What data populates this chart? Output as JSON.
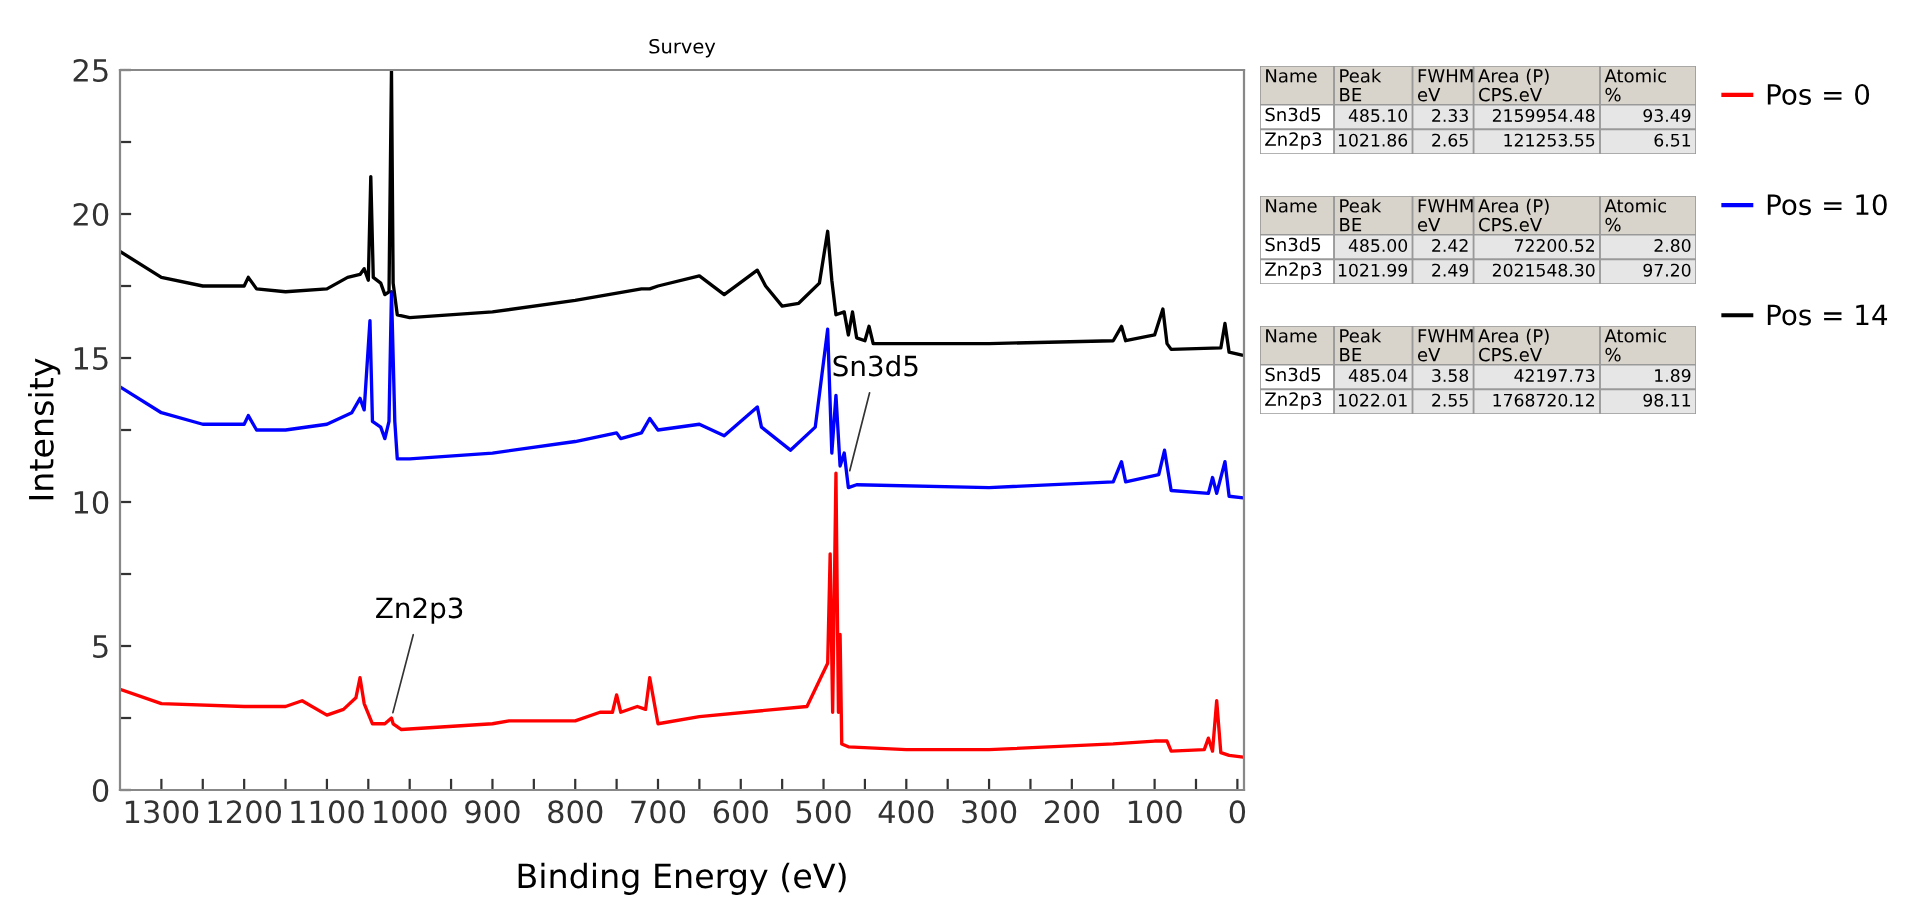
{
  "chart_data": [
    {
      "type": "line",
      "title": "Survey",
      "xlabel": "Binding Energy (eV)",
      "ylabel": "Intensity",
      "xlim": [
        1350,
        -8
      ],
      "ylim": [
        0,
        25
      ],
      "xticks": [
        1300,
        {
          "value": 1250,
          "label": null
        },
        1200,
        {
          "value": 1150,
          "label": null
        },
        1100,
        {
          "value": 1050,
          "label": null
        },
        1000,
        {
          "value": 950,
          "label": null
        },
        900,
        {
          "value": 850,
          "label": null
        },
        800,
        {
          "value": 750,
          "label": null
        },
        700,
        {
          "value": 650,
          "label": null
        },
        600,
        {
          "value": 550,
          "label": null
        },
        500,
        {
          "value": 450,
          "label": null
        },
        400,
        {
          "value": 350,
          "label": null
        },
        300,
        {
          "value": 250,
          "label": null
        },
        200,
        {
          "value": 150,
          "label": null
        },
        100,
        {
          "value": 50,
          "label": null
        },
        0
      ],
      "yticks": [
        0,
        {
          "value": 2.5,
          "label": null
        },
        5,
        {
          "value": 7.5,
          "label": null
        },
        10,
        {
          "value": 12.5,
          "label": null
        },
        15,
        {
          "value": 17.5,
          "label": null
        },
        20,
        {
          "value": 22.5,
          "label": null
        },
        25
      ],
      "grid": false,
      "legend": "right",
      "marker": "none",
      "line_style": "solid",
      "annotations": [
        {
          "text": "Sn3d5",
          "x": 470,
          "y": 10.9
        },
        {
          "text": "Zn2p3",
          "x": 1022,
          "y": 2.5
        }
      ],
      "series": [
        {
          "name": "Pos = 0",
          "color": "#ff0000",
          "x": [
            1350,
            1300,
            1200,
            1150,
            1130,
            1100,
            1080,
            1065,
            1060,
            1055,
            1045,
            1030,
            1022,
            1020,
            1010,
            900,
            880,
            800,
            770,
            755,
            750,
            745,
            725,
            715,
            710,
            700,
            650,
            520,
            505,
            495,
            492,
            489,
            485,
            482,
            480,
            478,
            470,
            400,
            300,
            150,
            100,
            85,
            80,
            40,
            35,
            30,
            25,
            20,
            10,
            -5
          ],
          "values": [
            3.5,
            3.0,
            2.9,
            2.9,
            3.1,
            2.6,
            2.8,
            3.2,
            3.9,
            3.0,
            2.3,
            2.3,
            2.5,
            2.3,
            2.1,
            2.3,
            2.4,
            2.4,
            2.7,
            2.7,
            3.3,
            2.7,
            2.9,
            2.8,
            3.9,
            2.3,
            2.55,
            2.9,
            3.8,
            4.4,
            8.2,
            2.7,
            11.0,
            2.7,
            5.4,
            1.6,
            1.5,
            1.4,
            1.4,
            1.6,
            1.7,
            1.7,
            1.35,
            1.4,
            1.8,
            1.35,
            3.1,
            1.3,
            1.2,
            1.15
          ]
        },
        {
          "name": "Pos = 10",
          "color": "#0000ff",
          "x": [
            1350,
            1300,
            1250,
            1200,
            1195,
            1185,
            1150,
            1100,
            1070,
            1060,
            1055,
            1048,
            1045,
            1035,
            1030,
            1025,
            1022,
            1018,
            1015,
            1000,
            900,
            800,
            750,
            745,
            720,
            710,
            700,
            650,
            620,
            580,
            575,
            540,
            510,
            495,
            490,
            485,
            480,
            475,
            470,
            460,
            300,
            150,
            140,
            135,
            95,
            88,
            80,
            35,
            30,
            25,
            15,
            10,
            -5
          ],
          "values": [
            14.0,
            13.1,
            12.7,
            12.7,
            13.0,
            12.5,
            12.5,
            12.7,
            13.1,
            13.6,
            13.2,
            16.3,
            12.8,
            12.6,
            12.2,
            12.8,
            17.3,
            12.8,
            11.5,
            11.5,
            11.7,
            12.1,
            12.4,
            12.2,
            12.4,
            12.9,
            12.5,
            12.7,
            12.3,
            13.3,
            12.6,
            11.8,
            12.6,
            16.0,
            11.7,
            13.7,
            11.25,
            11.7,
            10.5,
            10.6,
            10.5,
            10.7,
            11.4,
            10.7,
            10.95,
            11.8,
            10.4,
            10.3,
            10.85,
            10.3,
            11.4,
            10.2,
            10.15
          ]
        },
        {
          "name": "Pos = 14",
          "color": "#000000",
          "x": [
            1350,
            1300,
            1250,
            1200,
            1195,
            1185,
            1150,
            1100,
            1075,
            1060,
            1055,
            1050,
            1047,
            1044,
            1035,
            1030,
            1025,
            1022,
            1020,
            1015,
            1000,
            900,
            800,
            720,
            710,
            700,
            650,
            620,
            580,
            570,
            550,
            530,
            505,
            495,
            490,
            485,
            475,
            470,
            465,
            460,
            450,
            445,
            440,
            300,
            150,
            140,
            135,
            100,
            90,
            85,
            80,
            20,
            15,
            10,
            -5
          ],
          "values": [
            18.7,
            17.8,
            17.5,
            17.5,
            17.8,
            17.4,
            17.3,
            17.4,
            17.8,
            17.9,
            18.1,
            17.7,
            21.3,
            17.8,
            17.6,
            17.2,
            17.3,
            25,
            17.6,
            16.5,
            16.4,
            16.6,
            17.0,
            17.4,
            17.4,
            17.5,
            17.85,
            17.2,
            18.05,
            17.5,
            16.8,
            16.9,
            17.6,
            19.4,
            17.7,
            16.5,
            16.6,
            15.8,
            16.6,
            15.7,
            15.6,
            16.1,
            15.5,
            15.5,
            15.6,
            16.1,
            15.6,
            15.8,
            16.7,
            15.5,
            15.3,
            15.35,
            16.2,
            15.2,
            15.1
          ]
        }
      ]
    },
    {
      "type": "other",
      "annotations": [
        "Name",
        "Peak\nBE",
        "FWHM\neV",
        "Area (P)\nCPS.eV",
        "Atomic\n%",
        "Sn3d5",
        "485.10",
        "2.33",
        "2159954.48",
        "93.49",
        "Zn2p3",
        "1021.86",
        "2.65",
        "121253.55",
        "6.51"
      ]
    },
    {
      "type": "other",
      "annotations": [
        "Name",
        "Peak\nBE",
        "FWHM\neV",
        "Area (P)\nCPS.eV",
        "Atomic\n%",
        "Sn3d5",
        "485.00",
        "2.42",
        "72200.52",
        "2.80",
        "Zn2p3",
        "1021.99",
        "2.49",
        "2021548.30",
        "97.20"
      ]
    },
    {
      "type": "other",
      "annotations": [
        "Name",
        "Peak\nBE",
        "FWHM\neV",
        "Area (P)\nCPS.eV",
        "Atomic\n%",
        "Sn3d5",
        "485.04",
        "3.58",
        "42197.73",
        "1.89",
        "Zn2p3",
        "1022.01",
        "2.55",
        "1768720.12",
        "98.11"
      ]
    }
  ]
}
